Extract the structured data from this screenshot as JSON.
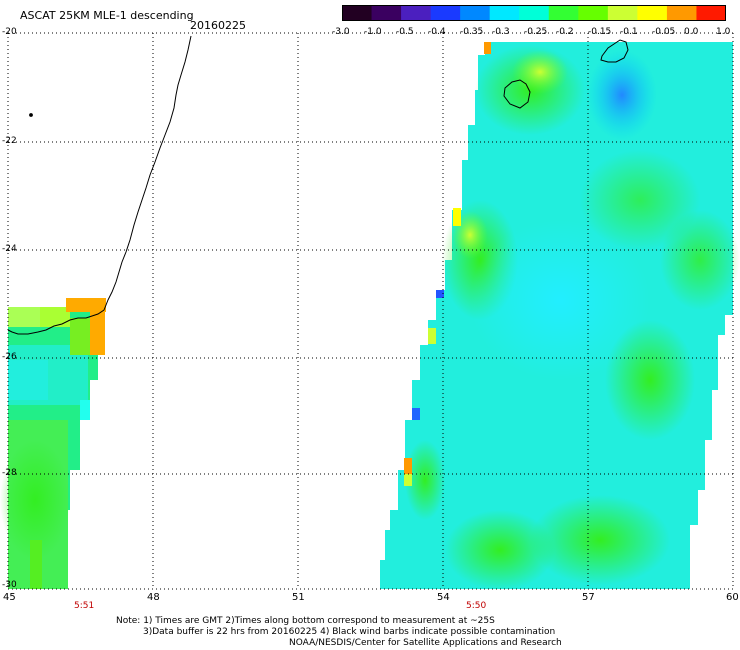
{
  "title": "ASCAT 25KM MLE-1 descending",
  "date_label": "20160225",
  "colorbar": {
    "labels": [
      "-3.0",
      "-1.0",
      "-0.5",
      "-0.4",
      "-0.35",
      "-0.3",
      "-0.25",
      "-0.2",
      "-0.15",
      "-0.1",
      "-0.05",
      "0.0",
      "1.0"
    ],
    "colors": [
      "#220022",
      "#3a0060",
      "#4b1fbf",
      "#1a3aff",
      "#0088ff",
      "#00e8ff",
      "#00ffd8",
      "#33ff33",
      "#66ff00",
      "#ccff33",
      "#ffff00",
      "#ff9900",
      "#ff1a00"
    ]
  },
  "axes": {
    "lon_ticks": [
      "45",
      "48",
      "51",
      "54",
      "57",
      "60"
    ],
    "lat_ticks": [
      "-20",
      "-22",
      "-24",
      "-26",
      "-28",
      "-30"
    ]
  },
  "pass_times": [
    "5:51",
    "5:50"
  ],
  "notes": [
    "Note: 1) Times are GMT 2)Times along bottom correspond to measurement at ~25S",
    "3)Data buffer is 22 hrs from 20160225 4) Black wind barbs indicate possible contamination",
    "NOAA/NESDIS/Center for Satellite Applications and Research"
  ]
}
